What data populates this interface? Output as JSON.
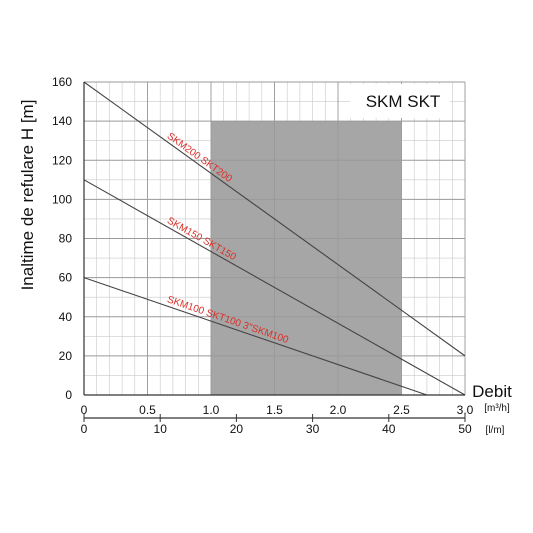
{
  "chart_data": {
    "type": "line",
    "title": "SKM SKT",
    "ylabel": "Inaltime de refulare H [m]",
    "xlabel": "Debit",
    "x_unit_top": "[m³/h]",
    "x_unit_bottom": "[l/m]",
    "xlim": [
      0,
      3.0
    ],
    "ylim": [
      0,
      160
    ],
    "x_ticks": [
      "0",
      "0.5",
      "1.0",
      "1.5",
      "2.0",
      "2.5",
      "3.0"
    ],
    "x2_ticks": [
      "0",
      "10",
      "20",
      "30",
      "40",
      "50"
    ],
    "y_ticks": [
      "0",
      "20",
      "40",
      "60",
      "80",
      "100",
      "120",
      "140",
      "160"
    ],
    "grid": true,
    "shaded_region": {
      "x": [
        1.0,
        2.5
      ],
      "y": [
        0,
        140
      ]
    },
    "series": [
      {
        "name": "SKM200 SKT200",
        "x": [
          0,
          3.0
        ],
        "y": [
          160,
          20
        ]
      },
      {
        "name": "SKM150 SKT150",
        "x": [
          0,
          3.0
        ],
        "y": [
          110,
          0
        ]
      },
      {
        "name": "SKM100 SKT100   3\"SKM100",
        "x": [
          0,
          2.7
        ],
        "y": [
          60,
          0
        ]
      }
    ],
    "colors": {
      "series_label": "#d9302a",
      "shade": "#a6a6a6",
      "line": "#444444",
      "grid": "#c9c9c9"
    }
  }
}
